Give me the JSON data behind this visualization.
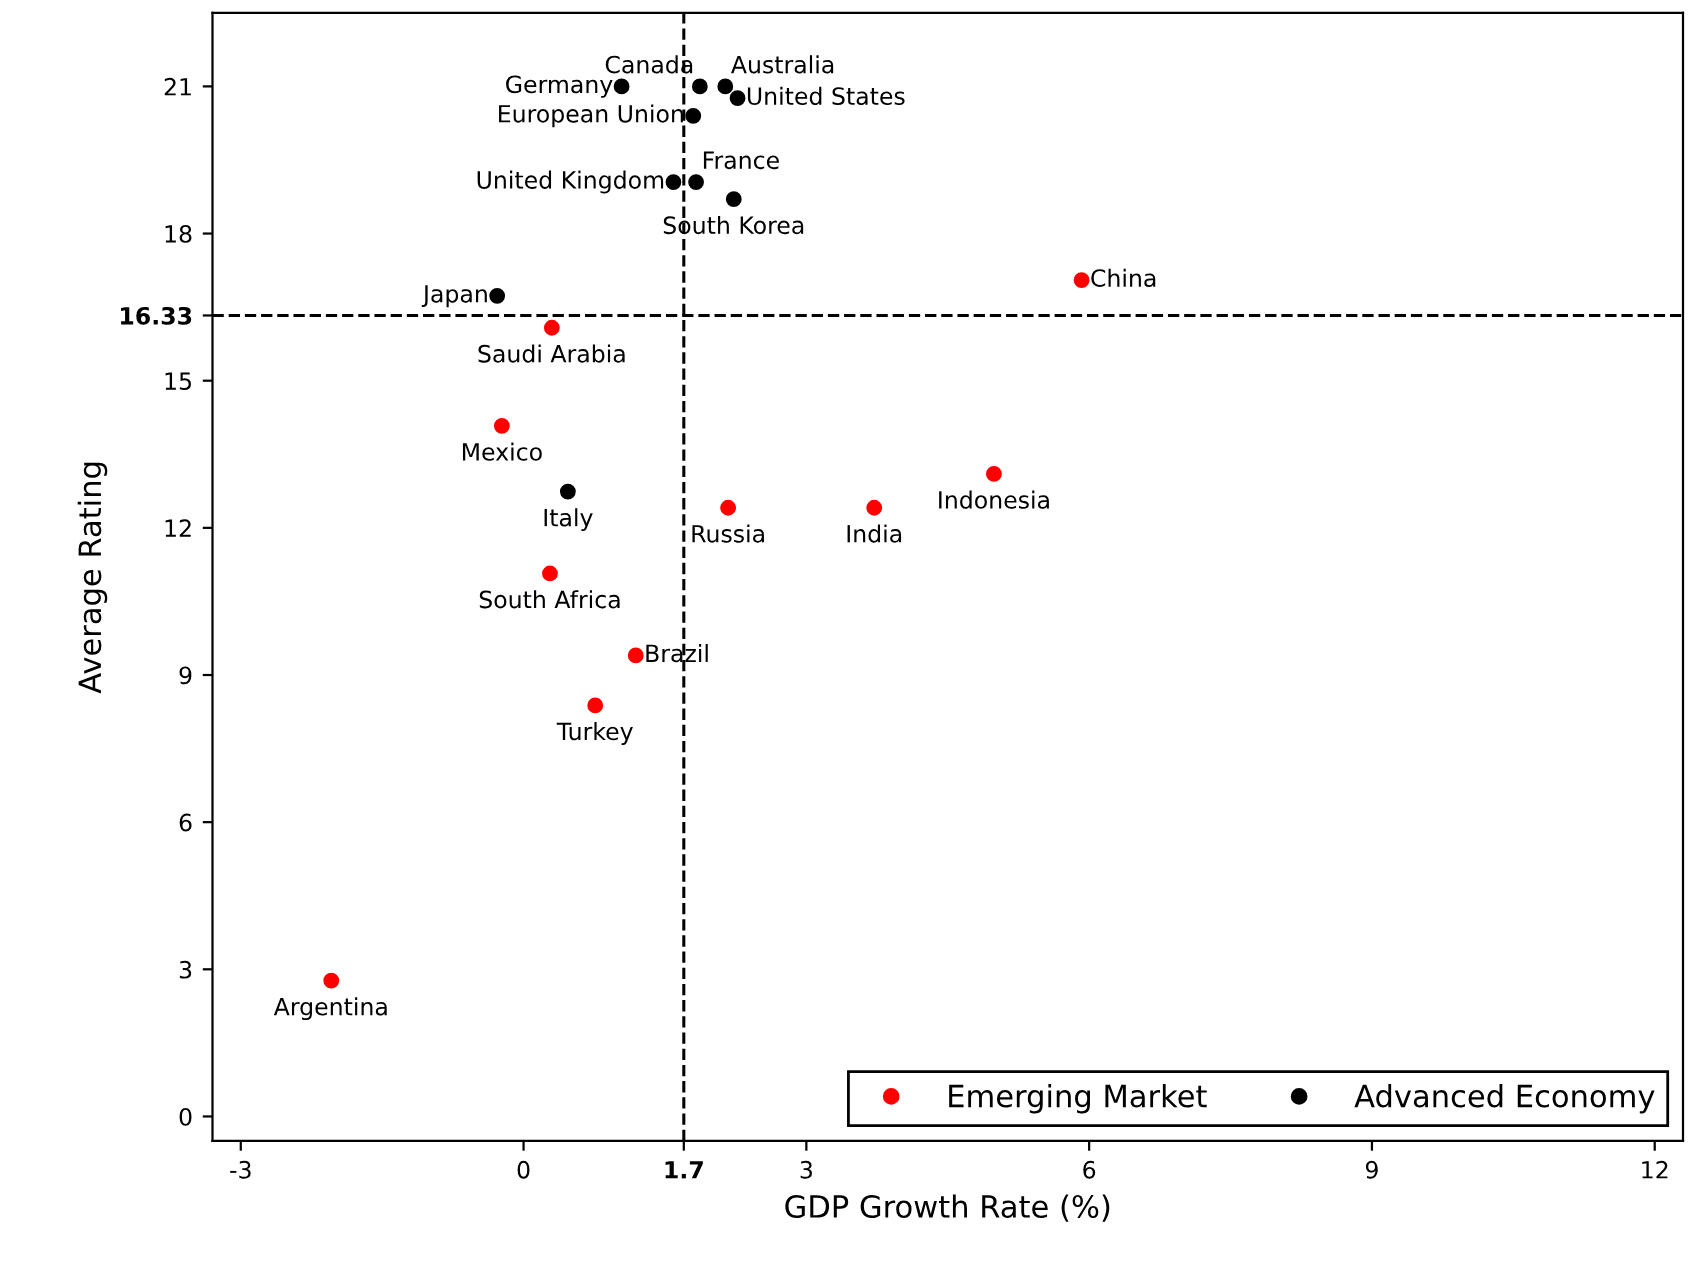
{
  "chart_data": {
    "type": "scatter",
    "xlabel": "GDP Growth Rate (%)",
    "ylabel": "Average Rating",
    "series": [
      {
        "name": "Emerging Market",
        "color": "#ff0000",
        "x": [
          5.92,
          0.3,
          -0.23,
          2.17,
          3.72,
          4.99,
          0.28,
          1.19,
          0.76,
          -2.04
        ],
        "values": [
          17.05,
          16.08,
          14.08,
          12.41,
          12.41,
          13.1,
          11.07,
          9.4,
          8.38,
          2.77
        ]
      },
      {
        "name": "Advanced Economy",
        "color": "#000000",
        "x": [
          1.87,
          2.14,
          1.04,
          2.27,
          1.8,
          1.59,
          1.83,
          2.23,
          -0.28,
          0.47
        ],
        "values": [
          21.0,
          21.0,
          21.0,
          20.76,
          20.4,
          19.05,
          19.05,
          18.7,
          16.73,
          12.74
        ]
      }
    ],
    "annotations": [
      {
        "text": "China",
        "x": 5.92,
        "y": 17.05
      },
      {
        "text": "Saudi Arabia",
        "x": 0.3,
        "y": 16.08
      },
      {
        "text": "Mexico",
        "x": -0.23,
        "y": 14.08
      },
      {
        "text": "Russia",
        "x": 2.17,
        "y": 12.41
      },
      {
        "text": "India",
        "x": 3.72,
        "y": 12.41
      },
      {
        "text": "Indonesia",
        "x": 4.99,
        "y": 13.1
      },
      {
        "text": "South Africa",
        "x": 0.28,
        "y": 11.07
      },
      {
        "text": "Brazil",
        "x": 1.19,
        "y": 9.4
      },
      {
        "text": "Turkey",
        "x": 0.76,
        "y": 8.38
      },
      {
        "text": "Argentina",
        "x": -2.04,
        "y": 2.77
      },
      {
        "text": "Canada",
        "x": 1.87,
        "y": 21.0
      },
      {
        "text": "Australia",
        "x": 2.14,
        "y": 21.0
      },
      {
        "text": "Germany",
        "x": 1.04,
        "y": 21.0
      },
      {
        "text": "United States",
        "x": 2.27,
        "y": 20.76
      },
      {
        "text": "European Union",
        "x": 1.8,
        "y": 20.4
      },
      {
        "text": "United Kingdom",
        "x": 1.59,
        "y": 19.05
      },
      {
        "text": "France",
        "x": 1.83,
        "y": 19.05
      },
      {
        "text": "South Korea",
        "x": 2.23,
        "y": 18.7
      },
      {
        "text": "Japan",
        "x": -0.28,
        "y": 16.73
      },
      {
        "text": "Italy",
        "x": 0.47,
        "y": 12.74
      }
    ],
    "xlim": [
      -3.3,
      12.3
    ],
    "ylim": [
      -0.5,
      22.5
    ],
    "xticks": [
      -3,
      0,
      1.7,
      3,
      6,
      9,
      12
    ],
    "yticks": [
      0,
      3,
      6,
      9,
      12,
      15,
      16.33,
      18,
      21
    ],
    "ref_lines": [
      {
        "axis": "x",
        "value": 1.7,
        "line_style": "dashed",
        "color": "#000000"
      },
      {
        "axis": "y",
        "value": 16.33,
        "line_style": "dashed",
        "color": "#000000"
      }
    ],
    "marker": "circle",
    "grid": false,
    "legend": "bottom right"
  }
}
